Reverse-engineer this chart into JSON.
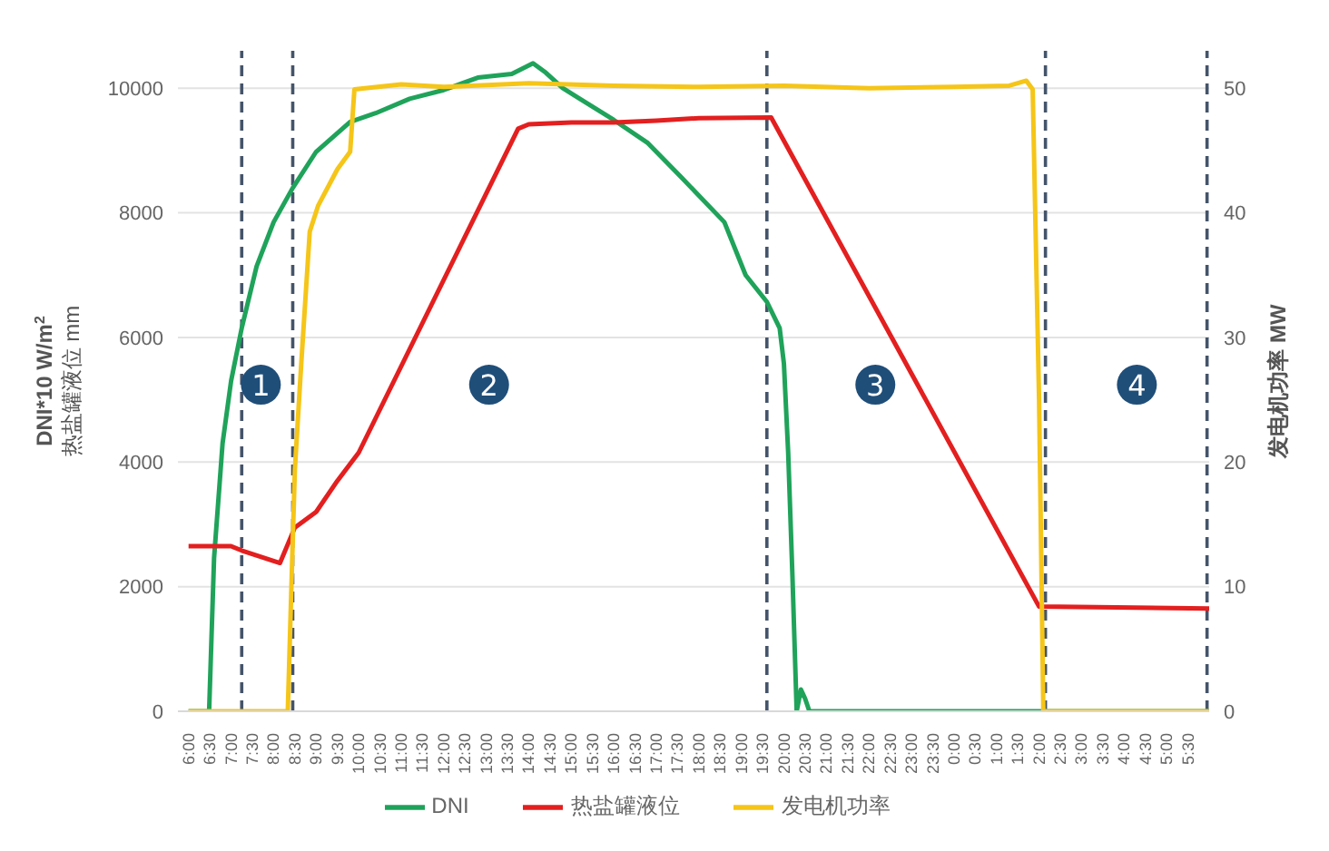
{
  "chart_data": {
    "type": "line",
    "ylabel": "DNI*10 W/m$^{2}$\n热盐罐液位 mm",
    "y2label": "发电机功率 MW",
    "xlim": [
      "--01-01T05:45",
      "--01-02T06:00"
    ],
    "ylim": [
      0,
      10600
    ],
    "y2lim": [
      0,
      53
    ],
    "yticks": [
      0,
      2000,
      4000,
      6000,
      8000,
      10000
    ],
    "y2ticks": [
      0,
      10,
      20,
      30,
      40,
      50
    ],
    "xticks": [
      {
        "value": "--01-01T06:00",
        "label": "6:00"
      },
      {
        "value": "--01-01T06:30",
        "label": "6:30"
      },
      {
        "value": "--01-01T07:00",
        "label": "7:00"
      },
      {
        "value": "--01-01T07:30",
        "label": "7:30"
      },
      {
        "value": "--01-01T08:00",
        "label": "8:00"
      },
      {
        "value": "--01-01T08:30",
        "label": "8:30"
      },
      {
        "value": "--01-01T09:00",
        "label": "9:00"
      },
      {
        "value": "--01-01T09:30",
        "label": "9:30"
      },
      {
        "value": "--01-01T10:00",
        "label": "10:00"
      },
      {
        "value": "--01-01T10:30",
        "label": "10:30"
      },
      {
        "value": "--01-01T11:00",
        "label": "11:00"
      },
      {
        "value": "--01-01T11:30",
        "label": "11:30"
      },
      {
        "value": "--01-01T12:00",
        "label": "12:00"
      },
      {
        "value": "--01-01T12:30",
        "label": "12:30"
      },
      {
        "value": "--01-01T13:00",
        "label": "13:00"
      },
      {
        "value": "--01-01T13:30",
        "label": "13:30"
      },
      {
        "value": "--01-01T14:00",
        "label": "14:00"
      },
      {
        "value": "--01-01T14:30",
        "label": "14:30"
      },
      {
        "value": "--01-01T15:00",
        "label": "15:00"
      },
      {
        "value": "--01-01T15:30",
        "label": "15:30"
      },
      {
        "value": "--01-01T16:00",
        "label": "16:00"
      },
      {
        "value": "--01-01T16:30",
        "label": "16:30"
      },
      {
        "value": "--01-01T17:00",
        "label": "17:00"
      },
      {
        "value": "--01-01T17:30",
        "label": "17:30"
      },
      {
        "value": "--01-01T18:00",
        "label": "18:00"
      },
      {
        "value": "--01-01T18:30",
        "label": "18:30"
      },
      {
        "value": "--01-01T19:00",
        "label": "19:00"
      },
      {
        "value": "--01-01T19:30",
        "label": "19:30"
      },
      {
        "value": "--01-01T20:00",
        "label": "20:00"
      },
      {
        "value": "--01-01T20:30",
        "label": "20:30"
      },
      {
        "value": "--01-01T21:00",
        "label": "21:00"
      },
      {
        "value": "--01-01T21:30",
        "label": "21:30"
      },
      {
        "value": "--01-01T22:00",
        "label": "22:00"
      },
      {
        "value": "--01-01T22:30",
        "label": "22:30"
      },
      {
        "value": "--01-01T23:00",
        "label": "23:00"
      },
      {
        "value": "--01-01T23:30",
        "label": "23:30"
      },
      {
        "value": "--01-02T00:00",
        "label": "0:00"
      },
      {
        "value": "--01-02T00:30",
        "label": "0:30"
      },
      {
        "value": "--01-02T01:00",
        "label": "1:00"
      },
      {
        "value": "--01-02T01:30",
        "label": "1:30"
      },
      {
        "value": "--01-02T02:00",
        "label": "2:00"
      },
      {
        "value": "--01-02T02:30",
        "label": "2:30"
      },
      {
        "value": "--01-02T03:00",
        "label": "3:00"
      },
      {
        "value": "--01-02T03:30",
        "label": "3:30"
      },
      {
        "value": "--01-02T04:00",
        "label": "4:00"
      },
      {
        "value": "--01-02T04:30",
        "label": "4:30"
      },
      {
        "value": "--01-02T05:00",
        "label": "5:00"
      },
      {
        "value": "--01-02T05:30",
        "label": "5:30"
      }
    ],
    "grid": "y",
    "legend": "bottom",
    "marker": "none",
    "line_style": "solid",
    "series": [
      {
        "name": "DNI",
        "color": "#1fa35a",
        "x": [
          "--01-01T06:00",
          "--01-01T06:29",
          "--01-01T06:36",
          "--01-01T06:48",
          "--01-01T07:00",
          "--01-01T07:15",
          "--01-01T07:36",
          "--01-01T08:00",
          "--01-01T08:27",
          "--01-01T09:00",
          "--01-01T09:48",
          "--01-01T10:24",
          "--01-01T11:12",
          "--01-01T12:00",
          "--01-01T12:48",
          "--01-01T13:36",
          "--01-01T14:06",
          "--01-01T14:24",
          "--01-01T14:48",
          "--01-01T15:12",
          "--01-01T16:00",
          "--01-01T16:48",
          "--01-01T17:36",
          "--01-01T18:36",
          "--01-01T19:06",
          "--01-01T19:36",
          "--01-01T19:54",
          "--01-01T20:00",
          "--01-01T20:06",
          "--01-01T20:12",
          "--01-01T20:18",
          "--01-01T20:24",
          "--01-01T20:30",
          "--01-01T20:36",
          "--01-01T21:00",
          "--01-02T00:00",
          "--01-02T03:00",
          "--01-02T06:00"
        ],
        "values": [
          0,
          0,
          2460,
          4300,
          5300,
          6150,
          7140,
          7850,
          8400,
          8980,
          9460,
          9600,
          9830,
          9970,
          10170,
          10230,
          10400,
          10250,
          10000,
          9830,
          9490,
          9120,
          8560,
          7850,
          7000,
          6570,
          6150,
          5580,
          4160,
          2180,
          0,
          350,
          200,
          0,
          0,
          0,
          0,
          0
        ]
      },
      {
        "name": "热盐罐液位",
        "color": "#e31f1f",
        "x": [
          "--01-01T06:00",
          "--01-01T07:00",
          "--01-01T07:15",
          "--01-01T08:09",
          "--01-01T08:30",
          "--01-01T09:00",
          "--01-01T09:30",
          "--01-01T10:00",
          "--01-01T13:45",
          "--01-01T14:00",
          "--01-01T15:00",
          "--01-01T16:00",
          "--01-01T17:00",
          "--01-01T18:00",
          "--01-01T19:42",
          "--01-02T02:00",
          "--01-02T06:00"
        ],
        "values": [
          2650,
          2650,
          2580,
          2380,
          2950,
          3200,
          3700,
          4150,
          9350,
          9420,
          9450,
          9450,
          9480,
          9520,
          9530,
          1680,
          1650
        ]
      },
      {
        "name": "发电机功率",
        "color": "#f5c518",
        "axis": "y2",
        "x": [
          "--01-01T06:00",
          "--01-01T08:20",
          "--01-01T08:27",
          "--01-01T08:30",
          "--01-01T08:39",
          "--01-01T08:51",
          "--01-01T09:03",
          "--01-01T09:30",
          "--01-01T09:48",
          "--01-01T09:54",
          "--01-01T11:00",
          "--01-01T12:00",
          "--01-01T14:00",
          "--01-01T16:00",
          "--01-01T18:00",
          "--01-01T20:00",
          "--01-01T22:00",
          "--01-02T00:00",
          "--01-02T01:18",
          "--01-02T01:42",
          "--01-02T01:51",
          "--01-02T02:00",
          "--01-02T02:06",
          "--01-02T06:00"
        ],
        "values": [
          0,
          0,
          13.7,
          19.4,
          27.9,
          38.5,
          40.6,
          43.5,
          44.9,
          49.9,
          50.3,
          50.1,
          50.4,
          50.2,
          50.1,
          50.2,
          50.0,
          50.1,
          50.2,
          50.6,
          49.9,
          25,
          0,
          0
        ]
      }
    ],
    "ref_lines": [
      {
        "axis": "x",
        "value": "--01-01T07:15",
        "color": "#44546a",
        "line_style": "dashed"
      },
      {
        "axis": "x",
        "value": "--01-01T08:27",
        "color": "#44546a",
        "line_style": "dashed"
      },
      {
        "axis": "x",
        "value": "--01-01T19:36",
        "color": "#44546a",
        "line_style": "dashed"
      },
      {
        "axis": "x",
        "value": "--01-02T02:09",
        "color": "#44546a",
        "line_style": "dashed"
      },
      {
        "axis": "x",
        "value": "--01-02T05:57",
        "color": "#44546a",
        "line_style": "dashed"
      }
    ],
    "annotations": [
      {
        "text": "1",
        "x": "--01-01T07:42",
        "y": 5240
      },
      {
        "text": "2",
        "x": "--01-01T13:04",
        "y": 5240
      },
      {
        "text": "3",
        "x": "--01-01T22:09",
        "y": 5240
      },
      {
        "text": "4",
        "x": "--01-02T04:18",
        "y": 5240
      }
    ]
  }
}
